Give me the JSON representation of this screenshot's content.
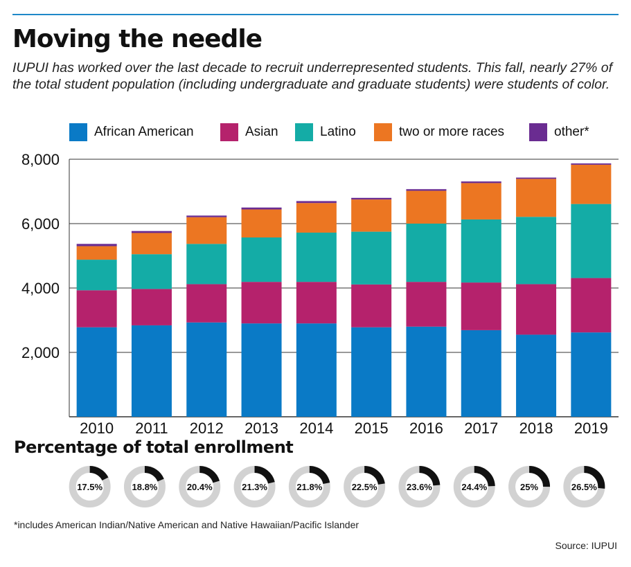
{
  "title": "Moving the needle",
  "subtitle": "IUPUI has worked over the last decade to recruit underrepresented students. This fall, nearly 27% of the total student population (including undergraduate and graduate students) were students of color.",
  "legend": [
    {
      "label": "African American",
      "color": "#0a7ac6"
    },
    {
      "label": "Asian",
      "color": "#b5226c"
    },
    {
      "label": "Latino",
      "color": "#14aca6"
    },
    {
      "label": "two or more races",
      "color": "#ec7622"
    },
    {
      "label": "other*",
      "color": "#6a2c91"
    }
  ],
  "chart_data": [
    {
      "type": "bar",
      "stacked": true,
      "categories": [
        "2010",
        "2011",
        "2012",
        "2013",
        "2014",
        "2015",
        "2016",
        "2017",
        "2018",
        "2019"
      ],
      "series": [
        {
          "name": "African American",
          "color": "#0a7ac6",
          "values": [
            2780,
            2840,
            2930,
            2900,
            2900,
            2780,
            2800,
            2690,
            2550,
            2620
          ]
        },
        {
          "name": "Asian",
          "color": "#b5226c",
          "values": [
            1150,
            1130,
            1190,
            1290,
            1290,
            1330,
            1390,
            1480,
            1570,
            1690
          ]
        },
        {
          "name": "Latino",
          "color": "#14aca6",
          "values": [
            950,
            1080,
            1250,
            1380,
            1530,
            1640,
            1810,
            1960,
            2090,
            2300
          ]
        },
        {
          "name": "two or more races",
          "color": "#ec7622",
          "values": [
            420,
            660,
            830,
            870,
            920,
            1000,
            1020,
            1130,
            1180,
            1220
          ]
        },
        {
          "name": "other*",
          "color": "#6a2c91",
          "values": [
            70,
            60,
            50,
            60,
            60,
            50,
            50,
            50,
            40,
            40
          ]
        }
      ],
      "yticks": [
        "2,000",
        "4,000",
        "6,000",
        "8,000"
      ],
      "ytick_values": [
        2000,
        4000,
        6000,
        8000
      ],
      "ylim": [
        0,
        8000
      ],
      "grid": true
    },
    {
      "type": "donut",
      "title": "Percentage of total enrollment",
      "categories": [
        "2010",
        "2011",
        "2012",
        "2013",
        "2014",
        "2015",
        "2016",
        "2017",
        "2018",
        "2019"
      ],
      "values": [
        17.5,
        18.8,
        20.4,
        21.3,
        21.8,
        22.5,
        23.6,
        24.4,
        25,
        26.5
      ],
      "labels": [
        "17.5%",
        "18.8%",
        "20.4%",
        "21.3%",
        "21.8%",
        "22.5%",
        "23.6%",
        "24.4%",
        "25%",
        "26.5%"
      ],
      "fill_color": "#111111",
      "track_color": "#d2d2d2"
    }
  ],
  "footnote": "*includes American Indian/Native American and Native Hawaiian/Pacific Islander",
  "source": "Source: IUPUI"
}
